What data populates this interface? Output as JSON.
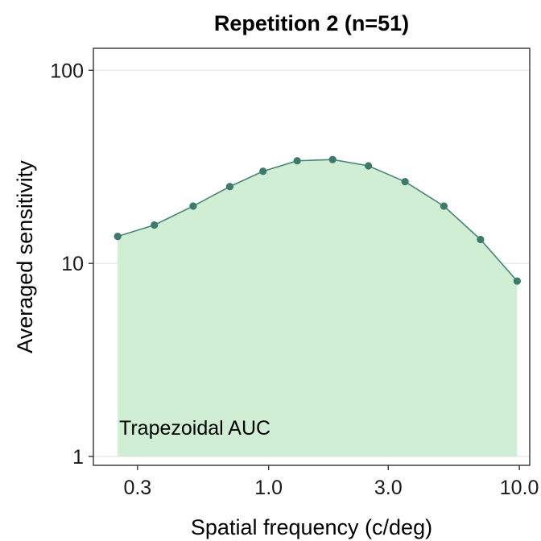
{
  "chart_data": {
    "type": "area",
    "title": "Repetition 2 (n=51)",
    "xlabel": "Spatial frequency (c/deg)",
    "ylabel": "Averaged sensitivity",
    "x_scale": "log",
    "y_scale": "log",
    "xlim": [
      0.2,
      11
    ],
    "ylim": [
      0.9,
      130
    ],
    "x_ticks": [
      0.3,
      1.0,
      3.0,
      10.0
    ],
    "x_tick_labels": [
      "0.3",
      "1.0",
      "3.0",
      "10.0"
    ],
    "y_ticks": [
      1,
      10,
      100
    ],
    "y_tick_labels": [
      "1",
      "10",
      "100"
    ],
    "grid": "horizontal major lines",
    "annotation": "Trapezoidal AUC",
    "series": [
      {
        "x": [
          0.25,
          0.35,
          0.5,
          0.7,
          0.95,
          1.3,
          1.8,
          2.5,
          3.5,
          5.0,
          7.0,
          9.8
        ],
        "y": [
          13.8,
          15.8,
          19.8,
          25.0,
          30.0,
          34.0,
          34.5,
          32.0,
          26.5,
          19.8,
          13.3,
          8.1
        ]
      }
    ],
    "colors": {
      "line": "#4a8577",
      "point": "#3e7a6c",
      "fill": "#cfeed4",
      "grid": "#ebebeb"
    }
  }
}
